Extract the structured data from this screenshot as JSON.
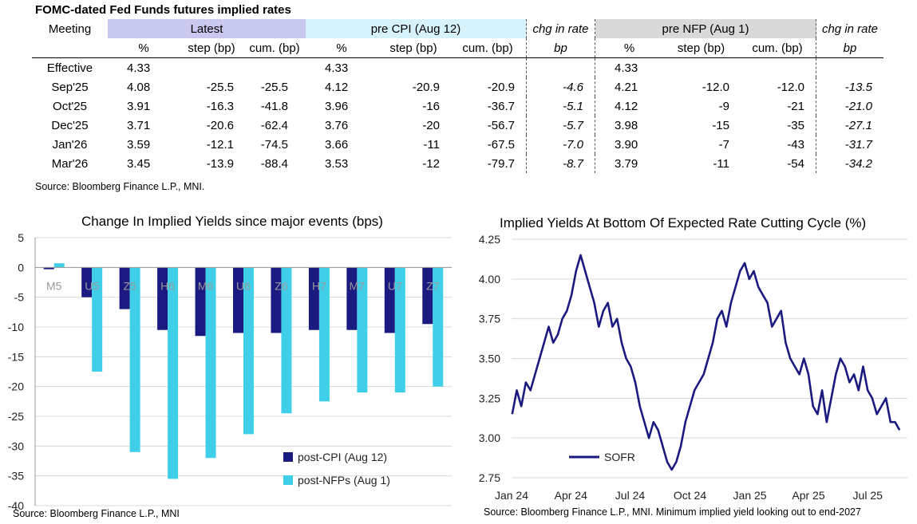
{
  "table": {
    "title": "FOMC-dated Fed Funds futures implied rates",
    "meeting_header": "Meeting",
    "groups": {
      "latest": "Latest",
      "pre_cpi": "pre CPI (Aug 12)",
      "chg1": "chg in rate",
      "pre_nfp": "pre NFP (Aug 1)",
      "chg2": "chg in rate"
    },
    "subheaders": {
      "pct": "%",
      "step": "step (bp)",
      "cum": "cum. (bp)",
      "bp": "bp"
    },
    "rows": [
      {
        "meeting": "Effective",
        "l_pct": "4.33",
        "l_step": "",
        "l_cum": "",
        "c_pct": "4.33",
        "c_step": "",
        "c_cum": "",
        "chg_cpi": "",
        "n_pct": "4.33",
        "n_step": "",
        "n_cum": "",
        "chg_nfp": ""
      },
      {
        "meeting": "Sep'25",
        "l_pct": "4.08",
        "l_step": "-25.5",
        "l_cum": "-25.5",
        "c_pct": "4.12",
        "c_step": "-20.9",
        "c_cum": "-20.9",
        "chg_cpi": "-4.6",
        "n_pct": "4.21",
        "n_step": "-12.0",
        "n_cum": "-12.0",
        "chg_nfp": "-13.5"
      },
      {
        "meeting": "Oct'25",
        "l_pct": "3.91",
        "l_step": "-16.3",
        "l_cum": "-41.8",
        "c_pct": "3.96",
        "c_step": "-16",
        "c_cum": "-36.7",
        "chg_cpi": "-5.1",
        "n_pct": "4.12",
        "n_step": "-9",
        "n_cum": "-21",
        "chg_nfp": "-21.0"
      },
      {
        "meeting": "Dec'25",
        "l_pct": "3.71",
        "l_step": "-20.6",
        "l_cum": "-62.4",
        "c_pct": "3.76",
        "c_step": "-20",
        "c_cum": "-56.7",
        "chg_cpi": "-5.7",
        "n_pct": "3.98",
        "n_step": "-15",
        "n_cum": "-35",
        "chg_nfp": "-27.1"
      },
      {
        "meeting": "Jan'26",
        "l_pct": "3.59",
        "l_step": "-12.1",
        "l_cum": "-74.5",
        "c_pct": "3.66",
        "c_step": "-11",
        "c_cum": "-67.5",
        "chg_cpi": "-7.0",
        "n_pct": "3.90",
        "n_step": "-7",
        "n_cum": "-43",
        "chg_nfp": "-31.7"
      },
      {
        "meeting": "Mar'26",
        "l_pct": "3.45",
        "l_step": "-13.9",
        "l_cum": "-88.4",
        "c_pct": "3.53",
        "c_step": "-12",
        "c_cum": "-79.7",
        "chg_cpi": "-8.7",
        "n_pct": "3.79",
        "n_step": "-11",
        "n_cum": "-54",
        "chg_nfp": "-34.2"
      }
    ],
    "source": "Source: Bloomberg Finance L.P., MNI."
  },
  "chart_data": [
    {
      "type": "bar",
      "title": "Change In Implied Yields since major events (bps)",
      "categories": [
        "M5",
        "U5",
        "Z5",
        "H6",
        "M6",
        "U6",
        "Z6",
        "H7",
        "M7",
        "U7",
        "Z7"
      ],
      "series": [
        {
          "name": "post-CPI (Aug 12)",
          "color": "#1a1a80",
          "values": [
            -0.3,
            -5.0,
            -7.0,
            -10.5,
            -11.5,
            -11.0,
            -11.0,
            -10.5,
            -10.5,
            -11.0,
            -9.5
          ]
        },
        {
          "name": "post-NFPs (Aug 1)",
          "color": "#40cfe8",
          "values": [
            0.7,
            -17.5,
            -31.0,
            -35.5,
            -32.0,
            -28.0,
            -24.5,
            -22.5,
            -21.0,
            -21.0,
            -20.0
          ]
        }
      ],
      "yticks": [
        "5",
        "0",
        "-5",
        "-10",
        "-15",
        "-20",
        "-25",
        "-30",
        "-35",
        "-40"
      ],
      "ylim": [
        -40,
        5
      ],
      "grid": true,
      "legend": "bottom-right",
      "source": "Source: Bloomberg Finance L.P., MNI"
    },
    {
      "type": "line",
      "title": "Implied Yields At Bottom Of Expected Rate Cutting Cycle (%)",
      "x_ticks": [
        "Jan 24",
        "Apr 24",
        "Jul 24",
        "Oct 24",
        "Jan 25",
        "Apr 25",
        "Jul 25"
      ],
      "yticks": [
        "4.25",
        "4.00",
        "3.75",
        "3.50",
        "3.25",
        "3.00",
        "2.75"
      ],
      "ylim": [
        2.75,
        4.25
      ],
      "grid": true,
      "legend": "bottom-left",
      "series": [
        {
          "name": "SOFR",
          "color": "#1a1a80",
          "x": [
            "2024-01-02",
            "2024-01-09",
            "2024-01-16",
            "2024-01-23",
            "2024-01-30",
            "2024-02-06",
            "2024-02-13",
            "2024-02-20",
            "2024-02-27",
            "2024-03-05",
            "2024-03-12",
            "2024-03-19",
            "2024-03-26",
            "2024-04-02",
            "2024-04-09",
            "2024-04-16",
            "2024-04-23",
            "2024-04-30",
            "2024-05-07",
            "2024-05-14",
            "2024-05-21",
            "2024-05-28",
            "2024-06-04",
            "2024-06-11",
            "2024-06-18",
            "2024-06-25",
            "2024-07-02",
            "2024-07-09",
            "2024-07-16",
            "2024-07-23",
            "2024-07-30",
            "2024-08-06",
            "2024-08-13",
            "2024-08-20",
            "2024-08-27",
            "2024-09-03",
            "2024-09-10",
            "2024-09-17",
            "2024-09-24",
            "2024-10-01",
            "2024-10-08",
            "2024-10-15",
            "2024-10-22",
            "2024-10-29",
            "2024-11-05",
            "2024-11-12",
            "2024-11-19",
            "2024-11-26",
            "2024-12-03",
            "2024-12-10",
            "2024-12-17",
            "2024-12-24",
            "2024-12-31",
            "2025-01-07",
            "2025-01-14",
            "2025-01-21",
            "2025-01-28",
            "2025-02-04",
            "2025-02-11",
            "2025-02-18",
            "2025-02-25",
            "2025-03-04",
            "2025-03-11",
            "2025-03-18",
            "2025-03-25",
            "2025-04-01",
            "2025-04-08",
            "2025-04-15",
            "2025-04-22",
            "2025-04-29",
            "2025-05-06",
            "2025-05-13",
            "2025-05-20",
            "2025-05-27",
            "2025-06-03",
            "2025-06-10",
            "2025-06-17",
            "2025-06-24",
            "2025-07-01",
            "2025-07-08",
            "2025-07-15",
            "2025-07-22",
            "2025-07-29",
            "2025-08-05",
            "2025-08-12",
            "2025-08-19"
          ],
          "y": [
            3.15,
            3.3,
            3.2,
            3.35,
            3.3,
            3.4,
            3.5,
            3.6,
            3.7,
            3.6,
            3.65,
            3.75,
            3.8,
            3.9,
            4.05,
            4.15,
            4.05,
            3.95,
            3.85,
            3.7,
            3.8,
            3.85,
            3.7,
            3.75,
            3.6,
            3.5,
            3.45,
            3.35,
            3.2,
            3.1,
            3.0,
            3.1,
            3.05,
            2.95,
            2.85,
            2.8,
            2.85,
            2.95,
            3.1,
            3.2,
            3.3,
            3.35,
            3.4,
            3.5,
            3.6,
            3.75,
            3.8,
            3.7,
            3.85,
            3.95,
            4.05,
            4.1,
            4.0,
            4.05,
            3.95,
            3.9,
            3.85,
            3.7,
            3.75,
            3.8,
            3.6,
            3.5,
            3.45,
            3.4,
            3.5,
            3.4,
            3.2,
            3.15,
            3.3,
            3.1,
            3.25,
            3.4,
            3.5,
            3.45,
            3.35,
            3.4,
            3.3,
            3.45,
            3.3,
            3.25,
            3.15,
            3.2,
            3.25,
            3.1,
            3.1,
            3.05
          ]
        }
      ],
      "source": "Source: Bloomberg Finance L.P., MNI. Minimum implied yield looking out to end-2027"
    }
  ]
}
